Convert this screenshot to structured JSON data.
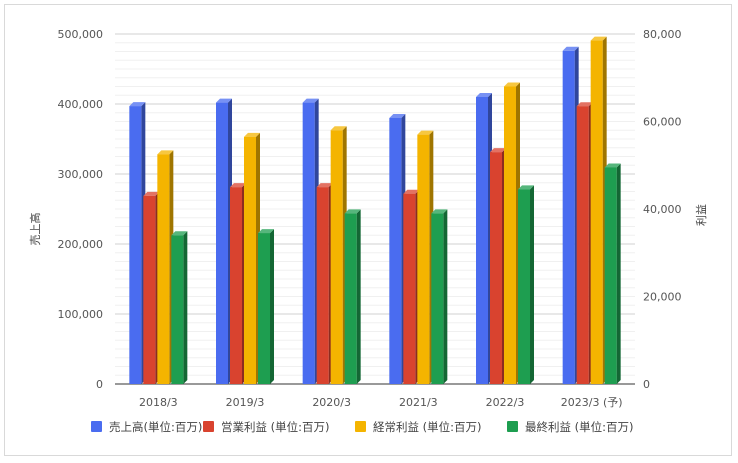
{
  "chart_data": {
    "type": "bar",
    "categories": [
      "2018/3",
      "2019/3",
      "2020/3",
      "2021/3",
      "2022/3",
      "2023/3 (予)"
    ],
    "series": [
      {
        "name": "売上高(単位:百万)",
        "axis": "left",
        "color": "#4a6cf0",
        "values": [
          397000,
          402000,
          402000,
          380000,
          410000,
          476000
        ]
      },
      {
        "name": "営業利益 (単位:百万)",
        "axis": "right",
        "color": "#d9432f",
        "values": [
          43000,
          45000,
          45000,
          43500,
          53000,
          63500
        ]
      },
      {
        "name": "経常利益 (単位:百万)",
        "axis": "right",
        "color": "#f4b400",
        "values": [
          52500,
          56500,
          58000,
          57000,
          68000,
          78500
        ]
      },
      {
        "name": "最終利益 (単位:百万)",
        "axis": "right",
        "color": "#1e9e50",
        "values": [
          34000,
          34500,
          39000,
          39000,
          44500,
          49500
        ]
      }
    ],
    "y_left": {
      "label": "売上高",
      "ylim": [
        0,
        500000
      ],
      "ticks": [
        "0",
        "100,000",
        "200,000",
        "300,000",
        "400,000",
        "500,000"
      ]
    },
    "y_right": {
      "label": "利益",
      "ylim": [
        0,
        80000
      ],
      "ticks": [
        "0",
        "20,000",
        "40,000",
        "60,000",
        "80,000"
      ]
    },
    "grid": true,
    "legend_position": "bottom",
    "style": "3d-bars"
  }
}
